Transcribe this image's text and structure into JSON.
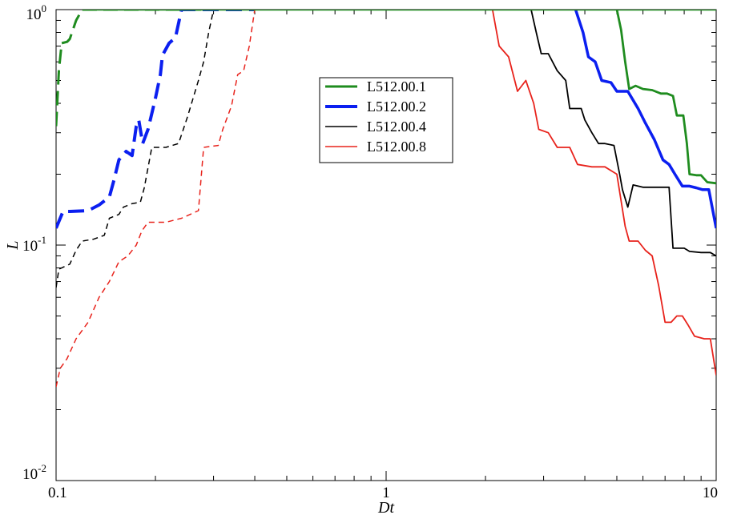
{
  "chart_data": {
    "type": "line",
    "title": "",
    "xlabel": "Dt",
    "ylabel": "L",
    "xscale": "log",
    "yscale": "log",
    "xlim": [
      0.1,
      10
    ],
    "ylim": [
      0.01,
      1
    ],
    "grid": false,
    "legend_position": "center",
    "x_ticks": [
      {
        "value": 0.1,
        "label": "0.1"
      },
      {
        "value": 1,
        "label": "1"
      },
      {
        "value": 10,
        "label": "10"
      }
    ],
    "y_ticks": [
      {
        "value": 0.01,
        "base": "10",
        "exp": "-2"
      },
      {
        "value": 0.1,
        "base": "10",
        "exp": "-1"
      },
      {
        "value": 1,
        "base": "10",
        "exp": "0"
      }
    ],
    "legend": [
      {
        "label": "L512.00.1",
        "color": "#1f8c1f"
      },
      {
        "label": "L512.00.2",
        "color": "#0b1ff0"
      },
      {
        "label": "L512.00.4",
        "color": "#000000"
      },
      {
        "label": "L512.00.8",
        "color": "#e8231c"
      }
    ],
    "series": [
      {
        "color": "#1f8c1f",
        "width": 3,
        "dash": "18,8",
        "points": [
          [
            0.1,
            0.32
          ],
          [
            0.102,
            0.55
          ],
          [
            0.104,
            0.72
          ],
          [
            0.108,
            0.73
          ],
          [
            0.11,
            0.75
          ],
          [
            0.115,
            0.9
          ],
          [
            0.12,
            1.0
          ],
          [
            0.3,
            1.0
          ]
        ]
      },
      {
        "color": "#0b1ff0",
        "width": 4,
        "dash": "20,9",
        "points": [
          [
            0.1,
            0.118
          ],
          [
            0.105,
            0.139
          ],
          [
            0.11,
            0.139
          ],
          [
            0.125,
            0.14
          ],
          [
            0.135,
            0.148
          ],
          [
            0.145,
            0.16
          ],
          [
            0.15,
            0.19
          ],
          [
            0.155,
            0.23
          ],
          [
            0.163,
            0.25
          ],
          [
            0.17,
            0.24
          ],
          [
            0.175,
            0.32
          ],
          [
            0.178,
            0.34
          ],
          [
            0.183,
            0.27
          ],
          [
            0.19,
            0.31
          ],
          [
            0.2,
            0.42
          ],
          [
            0.207,
            0.53
          ],
          [
            0.21,
            0.64
          ],
          [
            0.22,
            0.72
          ],
          [
            0.23,
            0.76
          ],
          [
            0.24,
            1.0
          ],
          [
            0.4,
            1.0
          ]
        ]
      },
      {
        "color": "#000000",
        "width": 1.5,
        "dash": "7,5",
        "points": [
          [
            0.1,
            0.066
          ],
          [
            0.102,
            0.079
          ],
          [
            0.11,
            0.083
          ],
          [
            0.115,
            0.095
          ],
          [
            0.12,
            0.104
          ],
          [
            0.13,
            0.106
          ],
          [
            0.14,
            0.11
          ],
          [
            0.145,
            0.13
          ],
          [
            0.155,
            0.135
          ],
          [
            0.16,
            0.145
          ],
          [
            0.17,
            0.15
          ],
          [
            0.18,
            0.152
          ],
          [
            0.185,
            0.175
          ],
          [
            0.195,
            0.26
          ],
          [
            0.215,
            0.26
          ],
          [
            0.235,
            0.27
          ],
          [
            0.25,
            0.35
          ],
          [
            0.26,
            0.42
          ],
          [
            0.27,
            0.5
          ],
          [
            0.28,
            0.6
          ],
          [
            0.29,
            0.8
          ],
          [
            0.3,
            1.0
          ],
          [
            0.5,
            1.0
          ]
        ]
      },
      {
        "color": "#e8231c",
        "width": 1.5,
        "dash": "7,5",
        "points": [
          [
            0.1,
            0.025
          ],
          [
            0.103,
            0.03
          ],
          [
            0.108,
            0.033
          ],
          [
            0.115,
            0.04
          ],
          [
            0.125,
            0.047
          ],
          [
            0.135,
            0.06
          ],
          [
            0.145,
            0.07
          ],
          [
            0.155,
            0.085
          ],
          [
            0.165,
            0.09
          ],
          [
            0.175,
            0.1
          ],
          [
            0.182,
            0.115
          ],
          [
            0.19,
            0.125
          ],
          [
            0.215,
            0.125
          ],
          [
            0.24,
            0.13
          ],
          [
            0.27,
            0.14
          ],
          [
            0.28,
            0.26
          ],
          [
            0.31,
            0.265
          ],
          [
            0.32,
            0.31
          ],
          [
            0.34,
            0.39
          ],
          [
            0.355,
            0.53
          ],
          [
            0.37,
            0.55
          ],
          [
            0.385,
            0.7
          ],
          [
            0.4,
            1.0
          ],
          [
            0.6,
            1.0
          ]
        ]
      },
      {
        "color": "#1f8c1f",
        "width": 2.8,
        "dash": "",
        "points": [
          [
            5,
            1.0
          ],
          [
            5.15,
            0.82
          ],
          [
            5.3,
            0.6
          ],
          [
            5.45,
            0.46
          ],
          [
            5.7,
            0.475
          ],
          [
            6.0,
            0.46
          ],
          [
            6.4,
            0.455
          ],
          [
            6.8,
            0.44
          ],
          [
            7.1,
            0.44
          ],
          [
            7.4,
            0.43
          ],
          [
            7.6,
            0.355
          ],
          [
            7.95,
            0.355
          ],
          [
            8.15,
            0.27
          ],
          [
            8.3,
            0.2
          ],
          [
            8.7,
            0.198
          ],
          [
            9.0,
            0.198
          ],
          [
            9.4,
            0.185
          ],
          [
            10,
            0.183
          ]
        ]
      },
      {
        "color": "#0b1ff0",
        "width": 3.5,
        "dash": "",
        "points": [
          [
            3.75,
            1.0
          ],
          [
            3.95,
            0.8
          ],
          [
            4.1,
            0.63
          ],
          [
            4.3,
            0.6
          ],
          [
            4.5,
            0.5
          ],
          [
            4.8,
            0.49
          ],
          [
            5.0,
            0.45
          ],
          [
            5.4,
            0.45
          ],
          [
            5.8,
            0.38
          ],
          [
            6.1,
            0.33
          ],
          [
            6.5,
            0.28
          ],
          [
            6.9,
            0.23
          ],
          [
            7.2,
            0.22
          ],
          [
            7.5,
            0.2
          ],
          [
            7.9,
            0.178
          ],
          [
            8.3,
            0.178
          ],
          [
            8.7,
            0.175
          ],
          [
            9.1,
            0.172
          ],
          [
            9.5,
            0.172
          ],
          [
            10,
            0.118
          ]
        ]
      },
      {
        "color": "#000000",
        "width": 1.8,
        "dash": "",
        "points": [
          [
            2.75,
            1.0
          ],
          [
            2.85,
            0.8
          ],
          [
            2.95,
            0.65
          ],
          [
            3.1,
            0.65
          ],
          [
            3.3,
            0.55
          ],
          [
            3.5,
            0.5
          ],
          [
            3.6,
            0.38
          ],
          [
            3.9,
            0.38
          ],
          [
            4.0,
            0.34
          ],
          [
            4.2,
            0.3
          ],
          [
            4.4,
            0.27
          ],
          [
            4.6,
            0.27
          ],
          [
            4.9,
            0.265
          ],
          [
            5.1,
            0.2
          ],
          [
            5.2,
            0.172
          ],
          [
            5.4,
            0.145
          ],
          [
            5.6,
            0.18
          ],
          [
            6.0,
            0.176
          ],
          [
            6.8,
            0.176
          ],
          [
            7.2,
            0.176
          ],
          [
            7.4,
            0.097
          ],
          [
            8.0,
            0.097
          ],
          [
            8.3,
            0.094
          ],
          [
            9.0,
            0.093
          ],
          [
            9.6,
            0.093
          ],
          [
            10,
            0.09
          ]
        ]
      },
      {
        "color": "#e8231c",
        "width": 1.8,
        "dash": "",
        "points": [
          [
            2.1,
            1.0
          ],
          [
            2.2,
            0.7
          ],
          [
            2.35,
            0.63
          ],
          [
            2.5,
            0.45
          ],
          [
            2.65,
            0.5
          ],
          [
            2.8,
            0.4
          ],
          [
            2.9,
            0.31
          ],
          [
            3.1,
            0.3
          ],
          [
            3.3,
            0.26
          ],
          [
            3.6,
            0.26
          ],
          [
            3.8,
            0.22
          ],
          [
            4.2,
            0.215
          ],
          [
            4.6,
            0.215
          ],
          [
            5.0,
            0.2
          ],
          [
            5.3,
            0.12
          ],
          [
            5.45,
            0.104
          ],
          [
            5.8,
            0.104
          ],
          [
            6.1,
            0.095
          ],
          [
            6.4,
            0.09
          ],
          [
            6.7,
            0.067
          ],
          [
            7.0,
            0.047
          ],
          [
            7.3,
            0.047
          ],
          [
            7.6,
            0.05
          ],
          [
            7.9,
            0.05
          ],
          [
            8.2,
            0.046
          ],
          [
            8.6,
            0.041
          ],
          [
            9.2,
            0.04
          ],
          [
            9.6,
            0.04
          ],
          [
            10,
            0.028
          ]
        ]
      }
    ]
  }
}
